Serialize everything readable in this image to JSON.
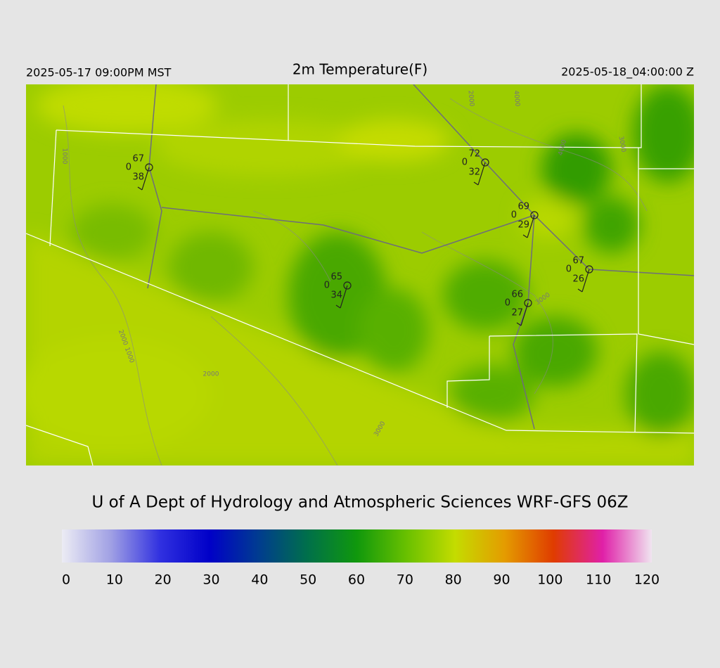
{
  "header": {
    "local_time": "2025-05-17 09:00PM MST",
    "title": "2m Temperature(F)",
    "utc_time": "2025-05-18_04:00:00 Z"
  },
  "map": {
    "stations": [
      {
        "temperature": 67,
        "precip": 0,
        "dewpoint": 38
      },
      {
        "temperature": 72,
        "precip": 0,
        "dewpoint": 32
      },
      {
        "temperature": 69,
        "precip": 0,
        "dewpoint": 29
      },
      {
        "temperature": 67,
        "precip": 0,
        "dewpoint": 26
      },
      {
        "temperature": 65,
        "precip": 0,
        "dewpoint": 34
      },
      {
        "temperature": 66,
        "precip": 0,
        "dewpoint": 27
      }
    ],
    "contour_labels": [
      1000,
      1000,
      2000,
      2000,
      2000,
      3000,
      3000,
      3000,
      4000,
      4000
    ]
  },
  "credit": "U of A Dept of Hydrology and Atmospheric Sciences WRF-GFS 06Z",
  "colorbar": {
    "ticks": [
      0,
      10,
      20,
      30,
      40,
      50,
      60,
      70,
      80,
      90,
      100,
      110,
      120
    ],
    "colors": [
      "#ececf4",
      "#a0a0e4",
      "#3030e0",
      "#0000c8",
      "#003c90",
      "#00704a",
      "#10980c",
      "#68c000",
      "#c4dc00",
      "#e49c00",
      "#e03c00",
      "#e020a8",
      "#f0e4f0"
    ]
  }
}
